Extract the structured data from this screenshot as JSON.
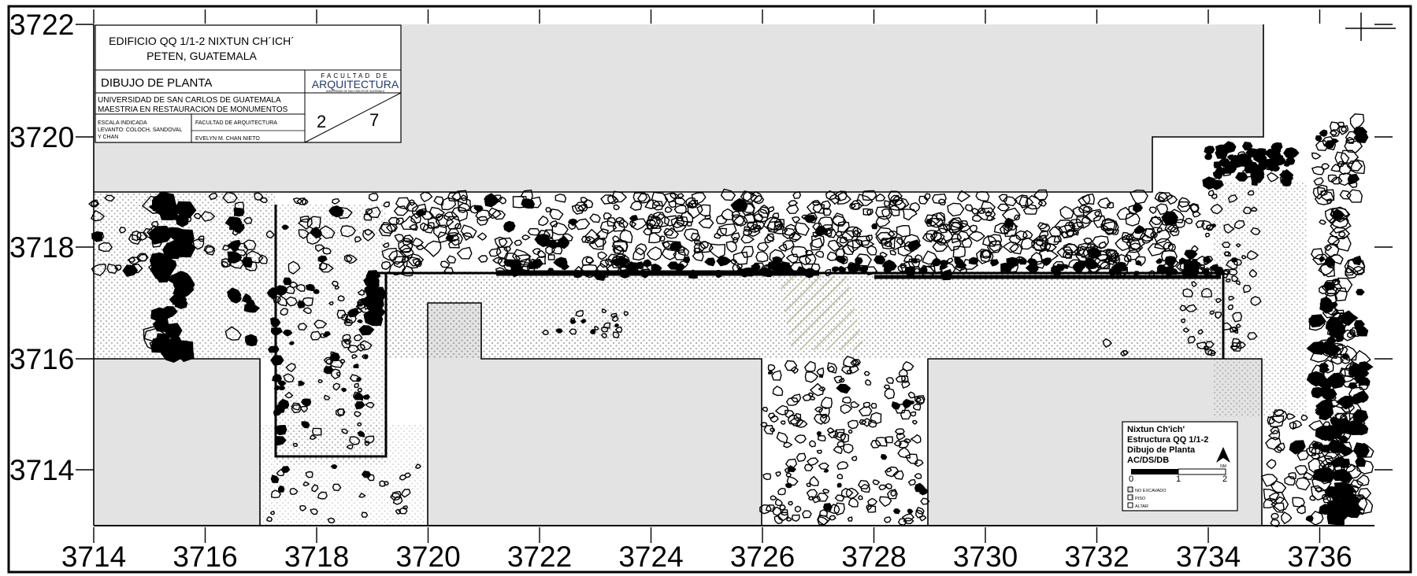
{
  "sheet": {
    "x_ticks": [
      "3714",
      "3716",
      "3718",
      "3720",
      "3722",
      "3724",
      "3726",
      "3728",
      "3730",
      "3732",
      "3734",
      "3736"
    ],
    "y_ticks": [
      "3722",
      "3720",
      "3718",
      "3716",
      "3714"
    ]
  },
  "title_block": {
    "title_line1": "EDIFICIO QQ 1/1-2 NIXTUN CH´ICH´",
    "title_line2": "PETEN, GUATEMALA",
    "drawing_type": "DIBUJO DE PLANTA",
    "faculty_logo_top": "FACULTAD DE",
    "faculty_logo_main": "ARQUITECTURA",
    "faculty_logo_sub": "UNIVERSIDAD DE SAN CARLOS DE GUATEMALA",
    "university": "UNIVERSIDAD DE SAN CARLOS DE GUATEMALA",
    "program": "MAESTRIA EN RESTAURACION DE MONUMENTOS",
    "scale": "ESCALA INDICADA",
    "survey_line1": "LEVANTO: COLOCH, SANDOVAL",
    "survey_line2": "Y CHAN",
    "faculty": "FACULTAD DE ARQUITECTURA",
    "author": "EVELYN M. CHAN NIETO",
    "sheet_number": "2",
    "sheet_total": "7"
  },
  "legend": {
    "line1": "Nixtun Ch'ich'",
    "line2": "Estructura QQ 1/1-2",
    "line3": "Dibujo de Planta",
    "line4": "AC/DS/DB",
    "north_label": "NM",
    "scale_0": "0",
    "scale_1": "1",
    "scale_2": "2",
    "items": [
      "NO EXCAVADO",
      "PISO",
      "ALTAR"
    ]
  },
  "colors": {
    "unexcavated": "#e3e3e3",
    "floor_dots": "#8a8a8a",
    "altar_hatch": "#b9bd98",
    "line": "#000000"
  }
}
